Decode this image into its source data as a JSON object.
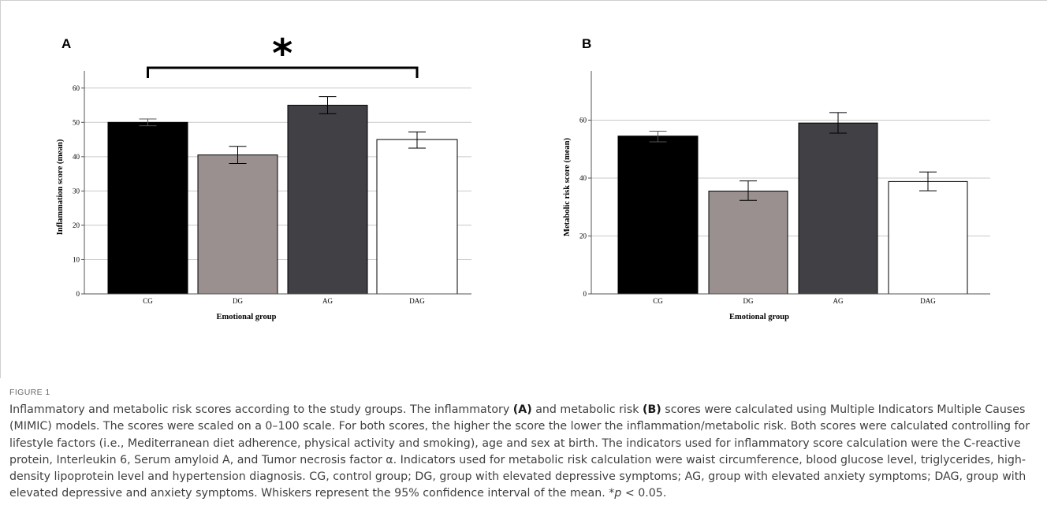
{
  "chart_data": [
    {
      "panel": "A",
      "type": "bar",
      "categories": [
        "CG",
        "DG",
        "AG",
        "DAG"
      ],
      "values": [
        50,
        40.5,
        55,
        45
      ],
      "error_low": [
        49,
        38,
        52.5,
        42.5
      ],
      "error_high": [
        51,
        43,
        57.5,
        47.2
      ],
      "bar_colors": [
        "#000000",
        "#9b9090",
        "#404045",
        "#ffffff"
      ],
      "xlabel": "Emotional group",
      "ylabel": "Inflammation score (mean)",
      "ylim": [
        0,
        65
      ],
      "yticks": [
        0,
        10,
        20,
        30,
        40,
        50,
        60
      ],
      "grid": true,
      "significance": {
        "from": "CG",
        "to": "DAG",
        "label": "*"
      }
    },
    {
      "panel": "B",
      "type": "bar",
      "categories": [
        "CG",
        "DG",
        "AG",
        "DAG"
      ],
      "values": [
        54.5,
        35.5,
        59,
        38.8
      ],
      "error_low": [
        52.5,
        32.3,
        55.5,
        35.6
      ],
      "error_high": [
        56.2,
        39,
        62.6,
        42.1
      ],
      "bar_colors": [
        "#000000",
        "#9b9090",
        "#404045",
        "#ffffff"
      ],
      "xlabel": "Emotional group",
      "ylabel": "Metabolic risk score (mean)",
      "ylim": [
        0,
        77
      ],
      "yticks": [
        0,
        20,
        40,
        60
      ],
      "grid": true
    }
  ],
  "caption": {
    "figure_label": "FIGURE 1",
    "text_1": "Inflammatory and metabolic risk scores according to the study groups. The inflammatory ",
    "panel_a": "(A)",
    "text_2": " and metabolic risk ",
    "panel_b": "(B)",
    "text_3": " scores were calculated using Multiple Indicators Multiple Causes (MIMIC) models. The scores were scaled on a 0–100 scale. For both scores, the higher the score the lower the inflammation/metabolic risk. Both scores were calculated controlling for lifestyle factors (i.e., Mediterranean diet adherence, physical activity and smoking), age and sex at birth. The indicators used for inflammatory score calculation were the C-reactive protein, Interleukin 6, Serum amyloid A, and Tumor necrosis factor α. Indicators used for metabolic risk calculation were waist circumference, blood glucose level, triglycerides, high-density lipoprotein level and hypertension diagnosis. CG, control group; DG, group with elevated depressive symptoms; AG, group with elevated anxiety symptoms; DAG, group with elevated depressive and anxiety symptoms. Whiskers represent the 95% confidence interval of the mean. *",
    "p_symbol": "p",
    "text_4": " < 0.05."
  }
}
